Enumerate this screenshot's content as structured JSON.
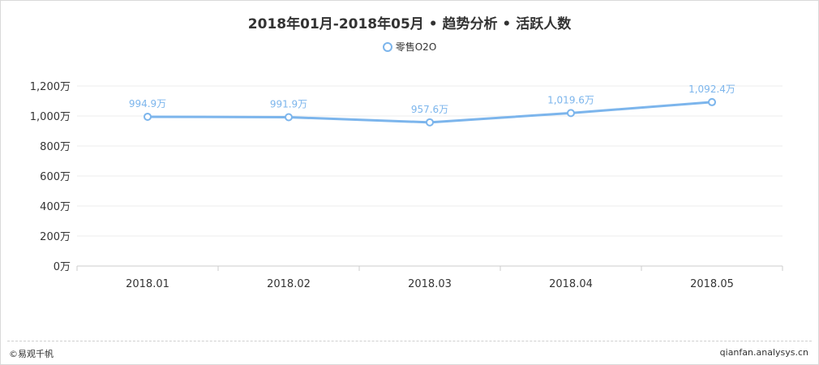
{
  "chart_data": {
    "type": "line",
    "title": "2018年01月-2018年05月 • 趋势分析 • 活跃人数",
    "categories": [
      "2018.01",
      "2018.02",
      "2018.03",
      "2018.04",
      "2018.05"
    ],
    "series": [
      {
        "name": "零售O2O",
        "values": [
          994.9,
          991.9,
          957.6,
          1019.6,
          1092.4
        ],
        "labels": [
          "994.9万",
          "991.9万",
          "957.6万",
          "1,019.6万",
          "1,092.4万"
        ],
        "color": "#7cb5ec"
      }
    ],
    "ylim": [
      0,
      1200
    ],
    "yticks": [
      0,
      200,
      400,
      600,
      800,
      1000,
      1200
    ],
    "ytick_labels": [
      "0万",
      "200万",
      "400万",
      "600万",
      "800万",
      "1,000万",
      "1,200万"
    ],
    "grid": true,
    "legend": "top-center"
  },
  "footer": {
    "copyright": "©易观千帆",
    "site": "qianfan.analysys.cn"
  }
}
